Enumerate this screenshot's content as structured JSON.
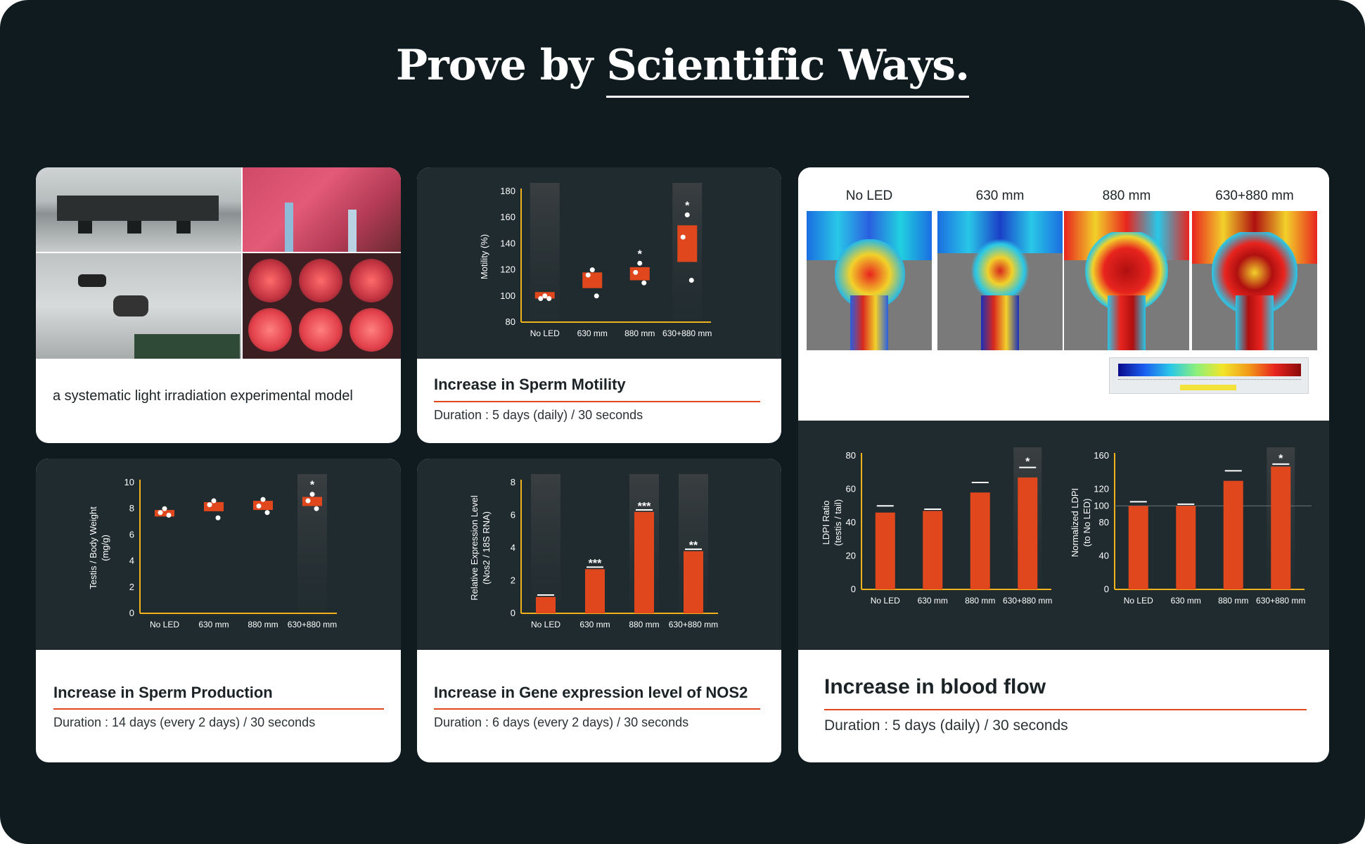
{
  "page": {
    "title_plain": "Prove by ",
    "title_emph": "Scientific Ways."
  },
  "colors": {
    "background": "#0f1b1f",
    "panel": "#1f2b2f",
    "accent": "#e0471c",
    "axis": "#f2b21b"
  },
  "cards": {
    "model": {
      "caption": "a systematic light irradiation experimental model"
    },
    "motility": {
      "title": "Increase in Sperm Motility",
      "duration": "Duration : 5 days (daily) / 30 seconds"
    },
    "production": {
      "title": "Increase in Sperm Production",
      "duration": "Duration : 14 days (every 2 days) / 30 seconds"
    },
    "gene": {
      "title": "Increase in Gene expression level of NOS2",
      "duration": "Duration : 6 days (every 2 days) / 30 seconds"
    },
    "bloodflow": {
      "title": "Increase in blood flow",
      "duration": "Duration : 5 days (daily) / 30 seconds",
      "image_labels": [
        "No LED",
        "630 mm",
        "880 mm",
        "630+880 mm"
      ]
    }
  },
  "chart_data": [
    {
      "id": "motility",
      "type": "scatter",
      "categories": [
        "No LED",
        "630 mm",
        "880 mm",
        "630+880 mm"
      ],
      "ylabel": "Motility (%)",
      "ylim": [
        80,
        180
      ],
      "yticks": [
        "80",
        "100",
        "120",
        "140",
        "160",
        "180"
      ],
      "box_ranges": [
        [
          98,
          103
        ],
        [
          106,
          118
        ],
        [
          112,
          122
        ],
        [
          126,
          154
        ]
      ],
      "points": [
        [
          100,
          98,
          98
        ],
        [
          120,
          116,
          100
        ],
        [
          125,
          118,
          110
        ],
        [
          162,
          145,
          112
        ]
      ],
      "stars": [
        "",
        "",
        "*",
        "*"
      ],
      "highlight": [
        true,
        false,
        false,
        true
      ]
    },
    {
      "id": "production",
      "type": "scatter",
      "categories": [
        "No LED",
        "630 mm",
        "880 mm",
        "630+880 mm"
      ],
      "ylabel": "Testis / Body Weight\n(mg/g)",
      "ylim": [
        0,
        10
      ],
      "yticks": [
        "0",
        "2",
        "4",
        "6",
        "8",
        "10"
      ],
      "box_ranges": [
        [
          7.4,
          7.9
        ],
        [
          7.8,
          8.5
        ],
        [
          7.9,
          8.6
        ],
        [
          8.2,
          8.9
        ]
      ],
      "points": [
        [
          8.0,
          7.7,
          7.5
        ],
        [
          8.6,
          8.3,
          7.3
        ],
        [
          8.7,
          8.2,
          7.7
        ],
        [
          9.1,
          8.6,
          8.0
        ]
      ],
      "stars": [
        "",
        "",
        "",
        "*"
      ],
      "highlight": [
        false,
        false,
        false,
        true
      ]
    },
    {
      "id": "gene",
      "type": "bar",
      "categories": [
        "No LED",
        "630 mm",
        "880 mm",
        "630+880 mm"
      ],
      "ylabel": "Relative Expression Level\n(Nos2 / 18S RNA)",
      "ylim": [
        0,
        8
      ],
      "yticks": [
        "0",
        "2",
        "4",
        "6",
        "8"
      ],
      "values": [
        1.0,
        2.7,
        6.2,
        3.8
      ],
      "stars": [
        "",
        "***",
        "***",
        "**"
      ],
      "highlight": [
        true,
        false,
        true,
        true
      ]
    },
    {
      "id": "ldpi",
      "type": "bar",
      "categories": [
        "No LED",
        "630 mm",
        "880 mm",
        "630+880 mm"
      ],
      "ylabel": "LDPI Ratio\n(testis / tail)",
      "ylim": [
        0,
        80
      ],
      "yticks": [
        "0",
        "20",
        "40",
        "60",
        "80"
      ],
      "values": [
        46,
        47,
        58,
        67
      ],
      "err_top": [
        50,
        48,
        64,
        73
      ],
      "stars": [
        "",
        "",
        "",
        "*"
      ],
      "highlight": [
        false,
        false,
        false,
        true
      ]
    },
    {
      "id": "normalized",
      "type": "bar",
      "categories": [
        "No LED",
        "630 mm",
        "880 mm",
        "630+880 mm"
      ],
      "ylabel": "Normalized LDPI\n(to No LED)",
      "ylim": [
        0,
        160
      ],
      "yticks": [
        "0",
        "40",
        "80",
        "100",
        "120",
        "160"
      ],
      "values": [
        100,
        100,
        130,
        147
      ],
      "err_top": [
        105,
        102,
        142,
        150
      ],
      "stars": [
        "",
        "",
        "",
        "*"
      ],
      "highlight": [
        false,
        false,
        false,
        true
      ]
    }
  ]
}
